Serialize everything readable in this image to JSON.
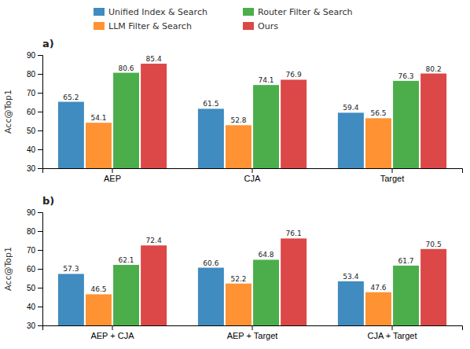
{
  "chart_data": [
    {
      "type": "bar",
      "title": "a)",
      "ylabel": "Acc@Top1",
      "categories": [
        "AEP",
        "CJA",
        "Target"
      ],
      "series": [
        {
          "name": "Unified Index & Search",
          "values": [
            65.2,
            61.5,
            59.4
          ]
        },
        {
          "name": "LLM Filter & Search",
          "values": [
            54.1,
            52.8,
            56.5
          ]
        },
        {
          "name": "Router Filter & Search",
          "values": [
            80.6,
            74.1,
            76.3
          ]
        },
        {
          "name": "Ours",
          "values": [
            85.4,
            76.9,
            80.2
          ]
        }
      ],
      "ylim": [
        30,
        90
      ],
      "yticks": [
        30,
        40,
        50,
        60,
        70,
        80,
        90
      ],
      "grid": false,
      "data_labels": true,
      "legend": "top"
    },
    {
      "type": "bar",
      "title": "b)",
      "ylabel": "Acc@Top1",
      "categories": [
        "AEP + CJA",
        "AEP + Target",
        "CJA + Target"
      ],
      "series": [
        {
          "name": "Unified Index & Search",
          "values": [
            57.3,
            60.6,
            53.4
          ]
        },
        {
          "name": "LLM Filter & Search",
          "values": [
            46.5,
            52.2,
            47.6
          ]
        },
        {
          "name": "Router Filter & Search",
          "values": [
            62.1,
            64.8,
            61.7
          ]
        },
        {
          "name": "Ours",
          "values": [
            72.4,
            76.1,
            70.5
          ]
        }
      ],
      "ylim": [
        30,
        90
      ],
      "yticks": [
        30,
        40,
        50,
        60,
        70,
        80,
        90
      ],
      "grid": false,
      "data_labels": true
    }
  ]
}
